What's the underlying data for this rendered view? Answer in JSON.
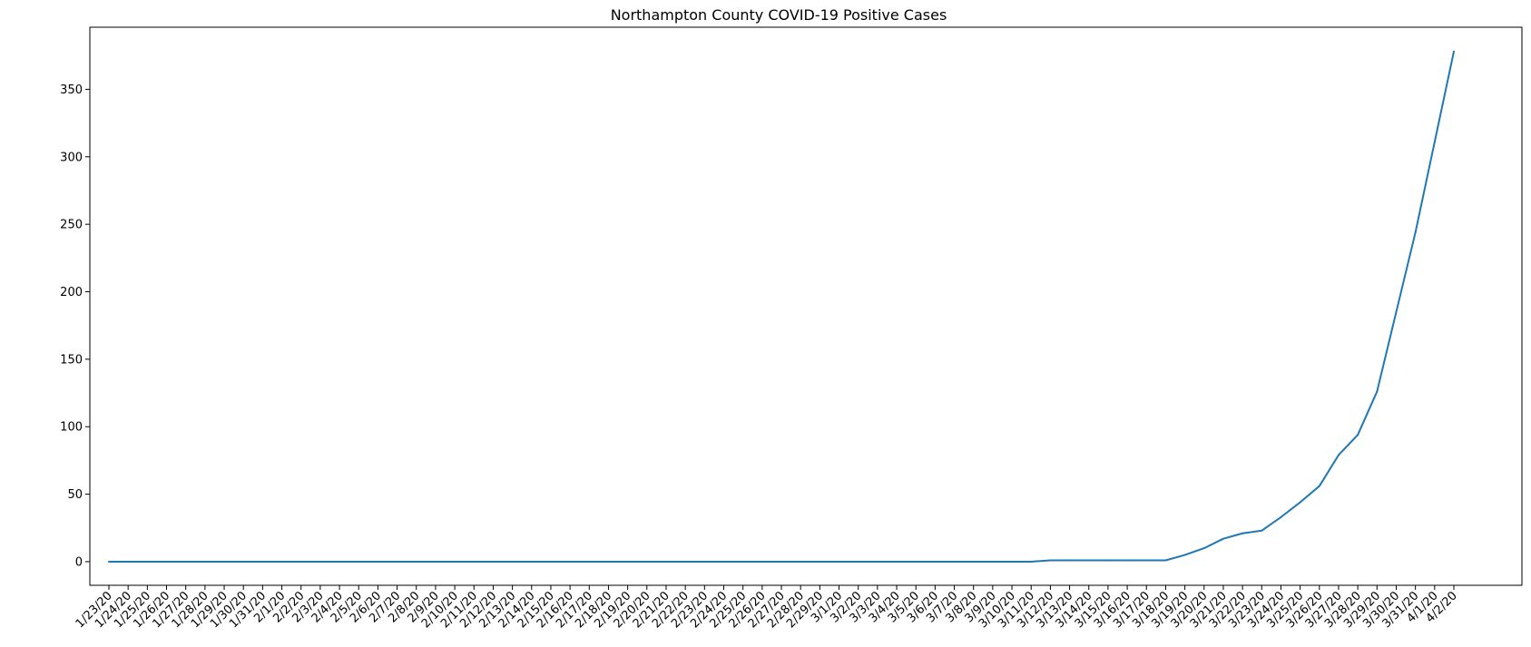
{
  "chart_data": {
    "type": "line",
    "title": "Northampton County COVID-19 Positive Cases",
    "xlabel": "",
    "ylabel": "",
    "categories": [
      "1/23/20",
      "1/24/20",
      "1/25/20",
      "1/26/20",
      "1/27/20",
      "1/28/20",
      "1/29/20",
      "1/30/20",
      "1/31/20",
      "2/1/20",
      "2/2/20",
      "2/3/20",
      "2/4/20",
      "2/5/20",
      "2/6/20",
      "2/7/20",
      "2/8/20",
      "2/9/20",
      "2/10/20",
      "2/11/20",
      "2/12/20",
      "2/13/20",
      "2/14/20",
      "2/15/20",
      "2/16/20",
      "2/17/20",
      "2/18/20",
      "2/19/20",
      "2/20/20",
      "2/21/20",
      "2/22/20",
      "2/23/20",
      "2/24/20",
      "2/25/20",
      "2/26/20",
      "2/27/20",
      "2/28/20",
      "2/29/20",
      "3/1/20",
      "3/2/20",
      "3/3/20",
      "3/4/20",
      "3/5/20",
      "3/6/20",
      "3/7/20",
      "3/8/20",
      "3/9/20",
      "3/10/20",
      "3/11/20",
      "3/12/20",
      "3/13/20",
      "3/14/20",
      "3/15/20",
      "3/16/20",
      "3/17/20",
      "3/18/20",
      "3/19/20",
      "3/20/20",
      "3/21/20",
      "3/22/20",
      "3/23/20",
      "3/24/20",
      "3/25/20",
      "3/26/20",
      "3/27/20",
      "3/28/20",
      "3/29/20",
      "3/30/20",
      "3/31/20",
      "4/1/20",
      "4/2/20"
    ],
    "series": [
      {
        "color": "#1f77b4",
        "values": [
          0,
          0,
          0,
          0,
          0,
          0,
          0,
          0,
          0,
          0,
          0,
          0,
          0,
          0,
          0,
          0,
          0,
          0,
          0,
          0,
          0,
          0,
          0,
          0,
          0,
          0,
          0,
          0,
          0,
          0,
          0,
          0,
          0,
          0,
          0,
          0,
          0,
          0,
          0,
          0,
          0,
          0,
          0,
          0,
          0,
          0,
          0,
          0,
          0,
          1,
          1,
          1,
          1,
          1,
          1,
          1,
          5,
          10,
          17,
          21,
          23,
          33,
          44,
          56,
          79,
          94,
          126,
          185,
          244,
          311,
          378
        ]
      }
    ],
    "ylim": [
      -17.5,
      396.0
    ],
    "yticks": [
      0,
      50,
      100,
      150,
      200,
      250,
      300,
      350
    ],
    "grid": false,
    "legend": "none"
  }
}
